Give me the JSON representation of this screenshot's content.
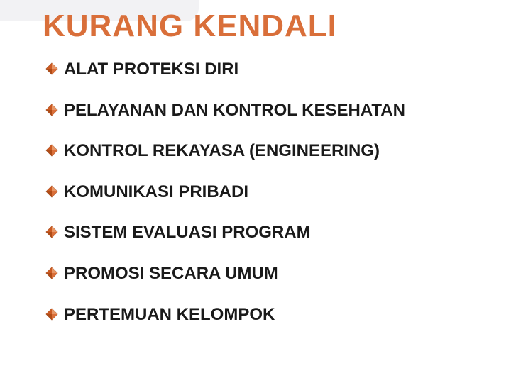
{
  "colors": {
    "title": "#d96f3a",
    "bullet_fill": "#d96f3a",
    "bullet_stroke": "#8a3a10",
    "text": "#1a1a1a",
    "background": "#ffffff",
    "corner_accent": "#f2f2f4"
  },
  "typography": {
    "title_fontsize": 44,
    "title_weight": 700,
    "item_fontsize": 24,
    "item_weight": 700,
    "font_family": "Arial"
  },
  "slide": {
    "title": "KURANG KENDALI",
    "items": [
      "ALAT PROTEKSI DIRI",
      "PELAYANAN DAN KONTROL KESEHATAN",
      "KONTROL REKAYASA (ENGINEERING)",
      "KOMUNIKASI PRIBADI",
      "SISTEM EVALUASI PROGRAM",
      "PROMOSI SECARA UMUM",
      "PERTEMUAN KELOMPOK"
    ]
  }
}
